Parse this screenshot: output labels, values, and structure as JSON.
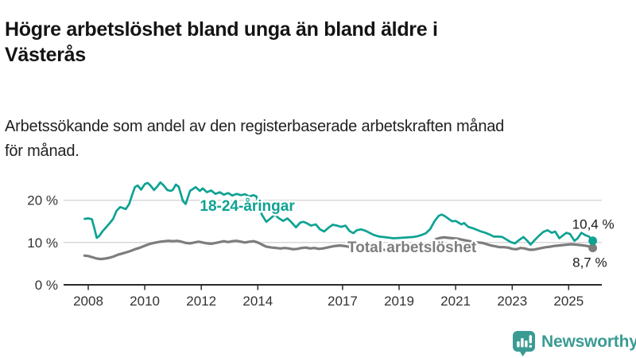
{
  "header": {
    "title": "Högre arbetslöshet bland unga än bland äldre i Västerås",
    "title_lines": [
      "Högre arbetslöshet bland unga än bland äldre i",
      "Västerås"
    ],
    "subtitle": "Arbetssökande som andel av den registerbaserade arbetskraften månad för månad.",
    "subtitle_lines": [
      "Arbetssökande som andel av den registerbaserade arbetskraften månad",
      "för månad."
    ]
  },
  "branding": {
    "logo_text": "Newsworthy",
    "logo_color": "#3a9b94",
    "logo_icon": "bar-chart-speech-bubble-icon"
  },
  "chart_data": {
    "type": "line",
    "title": "Högre arbetslöshet bland unga än bland äldre i Västerås",
    "subtitle": "Arbetssökande som andel av den registerbaserade arbetskraften månad för månad.",
    "unit": "%",
    "grid": "horizontal",
    "legend_position": "inline-labels",
    "xlim": [
      2007.8,
      2026.3
    ],
    "ylim": [
      0,
      25
    ],
    "x_ticks": [
      {
        "year": 2008,
        "label": "2008"
      },
      {
        "year": 2010,
        "label": "2010"
      },
      {
        "year": 2012,
        "label": "2012"
      },
      {
        "year": 2014,
        "label": "2014"
      },
      {
        "year": 2017,
        "label": "2017"
      },
      {
        "year": 2019,
        "label": "2019"
      },
      {
        "year": 2021,
        "label": "2021"
      },
      {
        "year": 2023,
        "label": "2023"
      },
      {
        "year": 2025,
        "label": "2025"
      }
    ],
    "y_ticks": [
      {
        "value": 0,
        "label": "0 %"
      },
      {
        "value": 10,
        "label": "10 %"
      },
      {
        "value": 20,
        "label": "20 %"
      }
    ],
    "series": [
      {
        "id": "total",
        "name": "Total arbetslöshet",
        "color": "#7d7d7d",
        "stroke_width": 3.2,
        "label_at": [
          2017.17,
          7.7
        ],
        "end_label": "8,7 %",
        "end_value": 8.7,
        "end_label_offset": [
          18,
          24
        ],
        "points": [
          [
            2007.87,
            6.9
          ],
          [
            2008.0,
            6.8
          ],
          [
            2008.15,
            6.5
          ],
          [
            2008.3,
            6.2
          ],
          [
            2008.45,
            6.1
          ],
          [
            2008.6,
            6.2
          ],
          [
            2008.75,
            6.4
          ],
          [
            2008.9,
            6.7
          ],
          [
            2009.05,
            7.1
          ],
          [
            2009.2,
            7.4
          ],
          [
            2009.35,
            7.7
          ],
          [
            2009.5,
            8.0
          ],
          [
            2009.65,
            8.4
          ],
          [
            2009.8,
            8.7
          ],
          [
            2009.95,
            9.1
          ],
          [
            2010.1,
            9.5
          ],
          [
            2010.25,
            9.8
          ],
          [
            2010.4,
            10.0
          ],
          [
            2010.55,
            10.2
          ],
          [
            2010.7,
            10.3
          ],
          [
            2010.85,
            10.4
          ],
          [
            2011.0,
            10.3
          ],
          [
            2011.15,
            10.4
          ],
          [
            2011.3,
            10.2
          ],
          [
            2011.45,
            9.9
          ],
          [
            2011.6,
            9.8
          ],
          [
            2011.75,
            10.0
          ],
          [
            2011.9,
            10.2
          ],
          [
            2012.05,
            10.0
          ],
          [
            2012.2,
            9.8
          ],
          [
            2012.35,
            9.7
          ],
          [
            2012.5,
            9.9
          ],
          [
            2012.65,
            10.1
          ],
          [
            2012.8,
            10.3
          ],
          [
            2012.95,
            10.1
          ],
          [
            2013.1,
            10.3
          ],
          [
            2013.25,
            10.4
          ],
          [
            2013.4,
            10.2
          ],
          [
            2013.55,
            10.0
          ],
          [
            2013.7,
            10.2
          ],
          [
            2013.85,
            10.3
          ],
          [
            2014.0,
            10.0
          ],
          [
            2014.15,
            9.5
          ],
          [
            2014.3,
            9.0
          ],
          [
            2014.5,
            8.8
          ],
          [
            2014.65,
            8.7
          ],
          [
            2014.8,
            8.6
          ],
          [
            2014.95,
            8.7
          ],
          [
            2015.1,
            8.6
          ],
          [
            2015.25,
            8.4
          ],
          [
            2015.4,
            8.5
          ],
          [
            2015.55,
            8.7
          ],
          [
            2015.7,
            8.8
          ],
          [
            2015.85,
            8.6
          ],
          [
            2016.0,
            8.7
          ],
          [
            2016.15,
            8.5
          ],
          [
            2016.3,
            8.6
          ],
          [
            2016.45,
            8.8
          ],
          [
            2016.6,
            9.0
          ],
          [
            2016.75,
            9.2
          ],
          [
            2016.9,
            9.3
          ],
          [
            2017.05,
            9.2
          ],
          [
            2017.2,
            9.0
          ],
          [
            2017.35,
            8.8
          ],
          [
            2017.5,
            8.7
          ],
          [
            2017.7,
            8.6
          ],
          [
            2017.9,
            8.5
          ],
          [
            2018.1,
            8.4
          ],
          [
            2018.35,
            8.3
          ],
          [
            2018.6,
            8.2
          ],
          [
            2018.85,
            8.2
          ],
          [
            2019.1,
            8.3
          ],
          [
            2019.35,
            8.3
          ],
          [
            2019.6,
            8.4
          ],
          [
            2019.85,
            8.5
          ],
          [
            2020.0,
            8.8
          ],
          [
            2020.1,
            9.4
          ],
          [
            2020.2,
            10.2
          ],
          [
            2020.3,
            10.8
          ],
          [
            2020.45,
            11.1
          ],
          [
            2020.6,
            11.2
          ],
          [
            2020.75,
            11.1
          ],
          [
            2020.9,
            11.0
          ],
          [
            2021.05,
            10.9
          ],
          [
            2021.2,
            10.7
          ],
          [
            2021.35,
            10.5
          ],
          [
            2021.5,
            10.3
          ],
          [
            2021.65,
            10.1
          ],
          [
            2021.8,
            10.0
          ],
          [
            2021.95,
            9.9
          ],
          [
            2022.1,
            9.6
          ],
          [
            2022.25,
            9.3
          ],
          [
            2022.4,
            9.1
          ],
          [
            2022.55,
            8.9
          ],
          [
            2022.7,
            8.9
          ],
          [
            2022.85,
            8.8
          ],
          [
            2023.0,
            8.5
          ],
          [
            2023.15,
            8.4
          ],
          [
            2023.3,
            8.7
          ],
          [
            2023.45,
            8.6
          ],
          [
            2023.6,
            8.3
          ],
          [
            2023.75,
            8.3
          ],
          [
            2023.9,
            8.5
          ],
          [
            2024.05,
            8.7
          ],
          [
            2024.2,
            8.9
          ],
          [
            2024.35,
            9.0
          ],
          [
            2024.5,
            9.2
          ],
          [
            2024.65,
            9.3
          ],
          [
            2024.8,
            9.4
          ],
          [
            2024.95,
            9.5
          ],
          [
            2025.1,
            9.6
          ],
          [
            2025.25,
            9.5
          ],
          [
            2025.4,
            9.4
          ],
          [
            2025.55,
            9.3
          ],
          [
            2025.7,
            9.1
          ],
          [
            2025.85,
            8.7
          ]
        ]
      },
      {
        "id": "youth",
        "name": "18-24-åringar",
        "color": "#0ea293",
        "stroke_width": 2.7,
        "label_at": [
          2011.95,
          17.5
        ],
        "end_label": "10,4 %",
        "end_value": 10.4,
        "end_label_offset": [
          27,
          -15
        ],
        "points": [
          [
            2007.87,
            15.6
          ],
          [
            2008.0,
            15.7
          ],
          [
            2008.13,
            15.5
          ],
          [
            2008.2,
            13.8
          ],
          [
            2008.3,
            11.1
          ],
          [
            2008.4,
            11.6
          ],
          [
            2008.5,
            12.6
          ],
          [
            2008.63,
            13.6
          ],
          [
            2008.75,
            14.5
          ],
          [
            2008.88,
            15.6
          ],
          [
            2009.0,
            17.5
          ],
          [
            2009.13,
            18.4
          ],
          [
            2009.25,
            18.1
          ],
          [
            2009.33,
            17.9
          ],
          [
            2009.45,
            19.1
          ],
          [
            2009.55,
            21.2
          ],
          [
            2009.65,
            23.1
          ],
          [
            2009.75,
            23.5
          ],
          [
            2009.87,
            22.5
          ],
          [
            2010.0,
            23.8
          ],
          [
            2010.1,
            24.1
          ],
          [
            2010.2,
            23.5
          ],
          [
            2010.33,
            22.4
          ],
          [
            2010.45,
            23.3
          ],
          [
            2010.55,
            24.2
          ],
          [
            2010.67,
            23.5
          ],
          [
            2010.8,
            22.4
          ],
          [
            2010.92,
            22.2
          ],
          [
            2011.0,
            22.5
          ],
          [
            2011.1,
            23.7
          ],
          [
            2011.2,
            23.2
          ],
          [
            2011.35,
            19.8
          ],
          [
            2011.45,
            19.1
          ],
          [
            2011.6,
            22.2
          ],
          [
            2011.8,
            23.1
          ],
          [
            2011.95,
            22.2
          ],
          [
            2012.05,
            22.8
          ],
          [
            2012.2,
            21.9
          ],
          [
            2012.35,
            22.3
          ],
          [
            2012.5,
            21.5
          ],
          [
            2012.65,
            21.9
          ],
          [
            2012.8,
            21.3
          ],
          [
            2012.95,
            21.7
          ],
          [
            2013.1,
            21.1
          ],
          [
            2013.25,
            21.5
          ],
          [
            2013.4,
            21.2
          ],
          [
            2013.55,
            21.4
          ],
          [
            2013.7,
            20.9
          ],
          [
            2013.85,
            21.2
          ],
          [
            2013.95,
            20.9
          ],
          [
            2014.05,
            18.4
          ],
          [
            2014.15,
            16.5
          ],
          [
            2014.3,
            14.9
          ],
          [
            2014.45,
            15.7
          ],
          [
            2014.6,
            16.6
          ],
          [
            2014.75,
            15.7
          ],
          [
            2014.9,
            15.1
          ],
          [
            2015.05,
            15.7
          ],
          [
            2015.2,
            14.7
          ],
          [
            2015.35,
            13.6
          ],
          [
            2015.5,
            14.7
          ],
          [
            2015.62,
            14.9
          ],
          [
            2015.75,
            14.5
          ],
          [
            2015.88,
            14.0
          ],
          [
            2016.05,
            14.3
          ],
          [
            2016.2,
            13.1
          ],
          [
            2016.35,
            12.6
          ],
          [
            2016.5,
            13.5
          ],
          [
            2016.65,
            14.2
          ],
          [
            2016.8,
            14.0
          ],
          [
            2016.95,
            13.7
          ],
          [
            2017.1,
            14.0
          ],
          [
            2017.25,
            12.7
          ],
          [
            2017.38,
            12.2
          ],
          [
            2017.5,
            12.9
          ],
          [
            2017.65,
            13.1
          ],
          [
            2017.8,
            12.8
          ],
          [
            2017.95,
            12.3
          ],
          [
            2018.1,
            11.8
          ],
          [
            2018.3,
            11.4
          ],
          [
            2018.55,
            11.2
          ],
          [
            2018.8,
            11.0
          ],
          [
            2019.05,
            11.1
          ],
          [
            2019.3,
            11.2
          ],
          [
            2019.5,
            11.3
          ],
          [
            2019.65,
            11.5
          ],
          [
            2019.8,
            11.8
          ],
          [
            2019.95,
            12.2
          ],
          [
            2020.1,
            13.2
          ],
          [
            2020.25,
            15.0
          ],
          [
            2020.4,
            16.3
          ],
          [
            2020.5,
            16.6
          ],
          [
            2020.63,
            16.2
          ],
          [
            2020.75,
            15.6
          ],
          [
            2020.88,
            15.0
          ],
          [
            2021.0,
            15.1
          ],
          [
            2021.1,
            14.7
          ],
          [
            2021.2,
            14.3
          ],
          [
            2021.3,
            14.6
          ],
          [
            2021.45,
            13.7
          ],
          [
            2021.6,
            13.4
          ],
          [
            2021.75,
            13.0
          ],
          [
            2021.9,
            12.6
          ],
          [
            2022.05,
            12.3
          ],
          [
            2022.2,
            11.9
          ],
          [
            2022.35,
            11.4
          ],
          [
            2022.5,
            11.4
          ],
          [
            2022.65,
            11.3
          ],
          [
            2022.8,
            10.7
          ],
          [
            2022.95,
            10.1
          ],
          [
            2023.1,
            9.8
          ],
          [
            2023.25,
            10.6
          ],
          [
            2023.4,
            11.3
          ],
          [
            2023.55,
            10.3
          ],
          [
            2023.65,
            9.5
          ],
          [
            2023.8,
            10.6
          ],
          [
            2023.95,
            11.6
          ],
          [
            2024.1,
            12.5
          ],
          [
            2024.25,
            12.9
          ],
          [
            2024.4,
            12.3
          ],
          [
            2024.52,
            12.6
          ],
          [
            2024.67,
            11.0
          ],
          [
            2024.8,
            11.7
          ],
          [
            2024.92,
            12.3
          ],
          [
            2025.05,
            12.0
          ],
          [
            2025.2,
            10.4
          ],
          [
            2025.32,
            11.0
          ],
          [
            2025.45,
            12.3
          ],
          [
            2025.6,
            11.7
          ],
          [
            2025.72,
            11.4
          ],
          [
            2025.85,
            10.4
          ]
        ]
      }
    ]
  }
}
